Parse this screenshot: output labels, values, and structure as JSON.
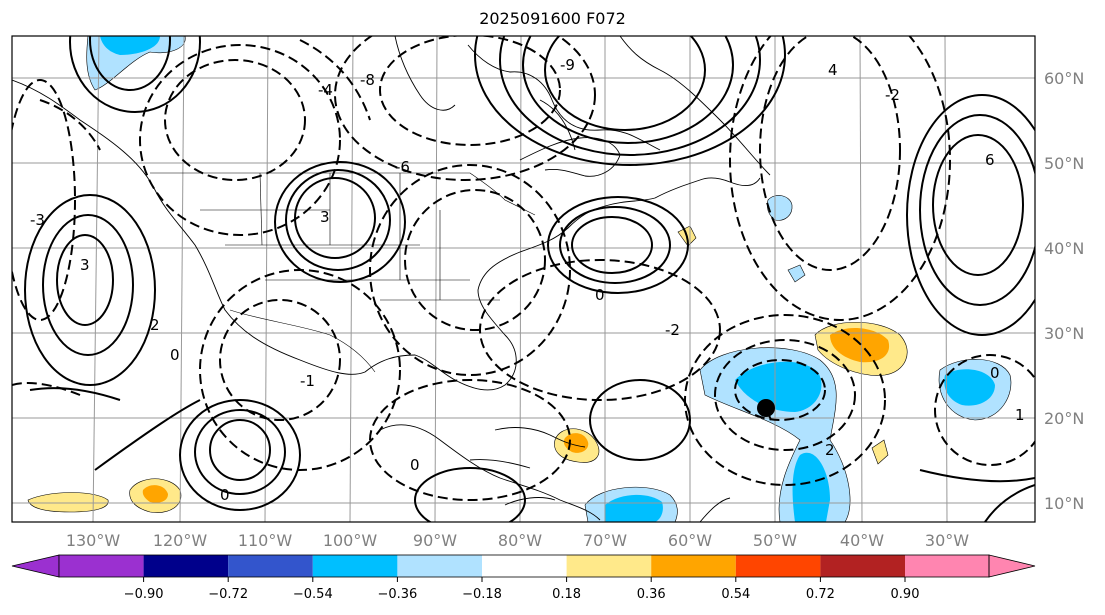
{
  "map": {
    "title": "2025091600 F072",
    "lon_labels": [
      "130°W",
      "120°W",
      "110°W",
      "100°W",
      "90°W",
      "80°W",
      "70°W",
      "60°W",
      "50°W",
      "40°W",
      "30°W"
    ],
    "lat_labels": [
      "60°N",
      "50°N",
      "40°N",
      "30°N",
      "20°N",
      "10°N"
    ],
    "contour_labels": [
      "0",
      "2",
      "-1",
      "3",
      "6",
      "-3",
      "-4",
      "-8",
      "4",
      "-2",
      "-9",
      "1",
      "-6"
    ],
    "storm_marker": {
      "name": "storm-center",
      "lon": -51,
      "lat": 21
    }
  },
  "colorbar": {
    "tick_labels": [
      "−0.90",
      "−0.72",
      "−0.54",
      "−0.36",
      "−0.18",
      "0.18",
      "0.36",
      "0.54",
      "0.72",
      "0.90"
    ],
    "colors": [
      "#9b30d0",
      "#00008b",
      "#3355cc",
      "#00bfff",
      "#b0e2ff",
      "#ffffff",
      "#ffe98a",
      "#ffa500",
      "#ff4500",
      "#b22222",
      "#ff85b0"
    ]
  }
}
